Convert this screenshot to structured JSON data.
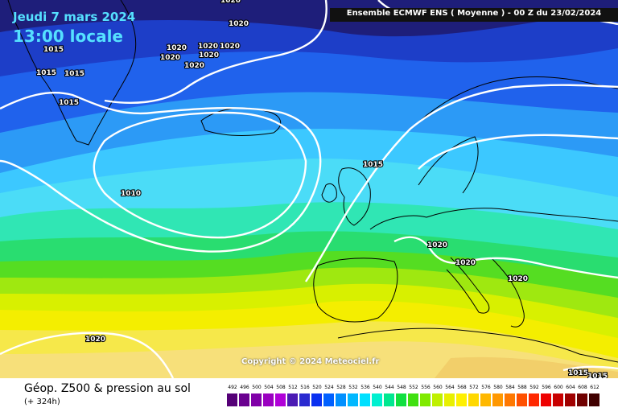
{
  "header": {
    "date": "Jeudi 7 mars 2024",
    "local_time": "13:00 locale",
    "model_title": "Ensemble ECMWF ENS  ( Moyenne )  -  00 Z du 23/02/2024"
  },
  "map": {
    "copyright": "Copyright © 2024 Meteociel.fr",
    "isobar_labels": [
      {
        "text": "1020"
      },
      {
        "text": "1020"
      },
      {
        "text": "1015"
      },
      {
        "text": "1020"
      },
      {
        "text": "1020"
      },
      {
        "text": "1020"
      },
      {
        "text": "1020"
      },
      {
        "text": "1020"
      },
      {
        "text": "1020"
      },
      {
        "text": "1015"
      },
      {
        "text": "1015"
      },
      {
        "text": "1015"
      },
      {
        "text": "1010"
      },
      {
        "text": "1015"
      },
      {
        "text": "1020"
      },
      {
        "text": "1020"
      },
      {
        "text": "1020"
      },
      {
        "text": "1020"
      },
      {
        "text": "1015"
      },
      {
        "text": "1015"
      }
    ],
    "colors": {
      "band_492": "#2a2aa8",
      "band_500": "#1e46d6",
      "band_520": "#2f7cf0",
      "band_530": "#3fc4ff",
      "band_540": "#33e0c8",
      "band_550": "#55dd33",
      "band_560": "#b8ee22",
      "band_570": "#f4f000",
      "band_580": "#f7e870",
      "band_590": "#f4d46e",
      "isobar": "#ffffff",
      "coast": "#000000"
    }
  },
  "footer": {
    "field_title": "Géop. Z500 & pression au sol",
    "lead_time": "(+ 324h)",
    "legend": [
      {
        "label": "492",
        "color": "#550077"
      },
      {
        "label": "496",
        "color": "#6a0090"
      },
      {
        "label": "500",
        "color": "#8000a8"
      },
      {
        "label": "504",
        "color": "#9a00c0"
      },
      {
        "label": "508",
        "color": "#b000d8"
      },
      {
        "label": "512",
        "color": "#4b1ab4"
      },
      {
        "label": "516",
        "color": "#2a2ad0"
      },
      {
        "label": "520",
        "color": "#0a30f0"
      },
      {
        "label": "524",
        "color": "#0060ff"
      },
      {
        "label": "528",
        "color": "#0090ff"
      },
      {
        "label": "532",
        "color": "#00b8ff"
      },
      {
        "label": "536",
        "color": "#00e0ff"
      },
      {
        "label": "540",
        "color": "#00f0d0"
      },
      {
        "label": "544",
        "color": "#00e890"
      },
      {
        "label": "548",
        "color": "#10e040"
      },
      {
        "label": "552",
        "color": "#40e010"
      },
      {
        "label": "556",
        "color": "#80ea00"
      },
      {
        "label": "560",
        "color": "#bff000"
      },
      {
        "label": "564",
        "color": "#e8f000"
      },
      {
        "label": "568",
        "color": "#fff000"
      },
      {
        "label": "572",
        "color": "#ffd800"
      },
      {
        "label": "576",
        "color": "#ffb800"
      },
      {
        "label": "580",
        "color": "#ff9800"
      },
      {
        "label": "584",
        "color": "#ff7800"
      },
      {
        "label": "588",
        "color": "#ff5000"
      },
      {
        "label": "592",
        "color": "#ff2800"
      },
      {
        "label": "596",
        "color": "#ee0000"
      },
      {
        "label": "600",
        "color": "#c80000"
      },
      {
        "label": "604",
        "color": "#a00000"
      },
      {
        "label": "608",
        "color": "#700000"
      },
      {
        "label": "612",
        "color": "#400000"
      }
    ]
  }
}
